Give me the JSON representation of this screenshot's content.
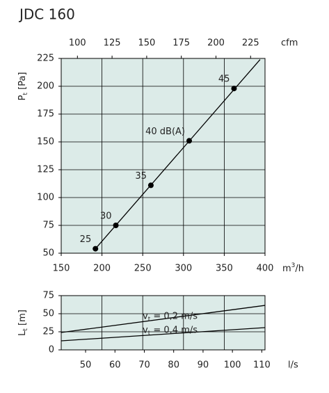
{
  "chart_data": [
    {
      "type": "line",
      "title": "JDC 160",
      "xlabel_parts": [
        "m",
        "3",
        "/h"
      ],
      "x2label": "cfm",
      "ylabel_parts": [
        "P",
        "t",
        " [Pa]"
      ],
      "xlim": [
        150,
        400
      ],
      "xticks": [
        150,
        200,
        250,
        300,
        350,
        400
      ],
      "x2lim": [
        88.3,
        235.4
      ],
      "x2ticks": [
        100,
        125,
        150,
        175,
        200,
        225
      ],
      "ylim": [
        50,
        225
      ],
      "yticks": [
        50,
        75,
        100,
        125,
        150,
        175,
        200,
        225
      ],
      "grid": true,
      "background": "#dcebe8",
      "series": [
        {
          "color": "#000000",
          "x": [
            192,
            394
          ],
          "values": [
            54,
            224
          ]
        }
      ],
      "points": {
        "color": "#000000",
        "x": [
          192,
          217,
          260,
          307,
          362
        ],
        "values": [
          54,
          75,
          111,
          151,
          198
        ],
        "labels": [
          "25",
          "30",
          "35",
          "40 dB(A)",
          "45"
        ]
      }
    },
    {
      "type": "line",
      "xlabel": "l/s",
      "ylabel_parts": [
        "L",
        "t",
        " [m]"
      ],
      "xlim": [
        41.7,
        111.1
      ],
      "xticks": [
        50,
        60,
        70,
        80,
        90,
        100,
        110
      ],
      "ylim": [
        0,
        75
      ],
      "yticks": [
        0,
        25,
        50,
        75
      ],
      "grid": true,
      "background": "#dcebe8",
      "series": [
        {
          "name_parts": [
            "v",
            "t",
            " = 0,2 m/s"
          ],
          "color": "#000000",
          "x": [
            41.7,
            111.1
          ],
          "values": [
            24,
            61.5
          ]
        },
        {
          "name_parts": [
            "v",
            "t",
            " = 0,4 m/s"
          ],
          "color": "#000000",
          "x": [
            41.7,
            111.1
          ],
          "values": [
            12.5,
            30.8
          ]
        }
      ]
    }
  ]
}
